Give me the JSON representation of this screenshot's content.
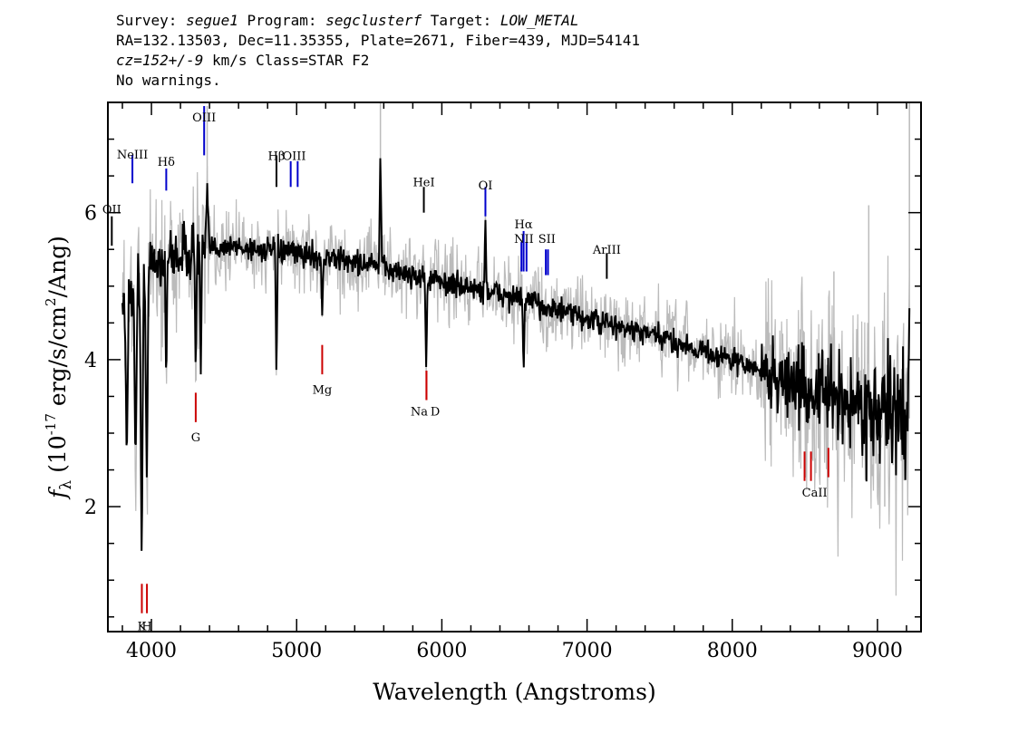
{
  "header": {
    "line1": [
      {
        "text": "Survey: ",
        "italic": false
      },
      {
        "text": "segue1",
        "italic": true
      },
      {
        "text": " Program: ",
        "italic": false
      },
      {
        "text": "segclusterf",
        "italic": true
      },
      {
        "text": " Target: ",
        "italic": false
      },
      {
        "text": "LOW_METAL",
        "italic": true
      }
    ],
    "line2": "RA=132.13503, Dec=11.35355, Plate=2671, Fiber=439, MJD=54141",
    "line3": [
      {
        "text": "cz=152+/-9",
        "italic": true
      },
      {
        "text": " km/s Class=STAR F2",
        "italic": false
      }
    ],
    "line4": "No warnings."
  },
  "chart_data": {
    "type": "line",
    "xlabel": "Wavelength (Angstroms)",
    "ylabel": "f_λ (10^-17 erg/s/cm²/Ang)",
    "ylabel_parts": {
      "f": "f",
      "sub": "λ",
      "pre": " (10",
      "sup1": "-17",
      "mid": " erg/s/cm",
      "sup2": "2",
      "post": "/Ang)"
    },
    "xlim": [
      3700,
      9300
    ],
    "ylim": [
      0.3,
      7.5
    ],
    "x_ticks": [
      4000,
      5000,
      6000,
      7000,
      8000,
      9000
    ],
    "y_ticks": [
      2,
      4,
      6
    ],
    "x_minor_step": 200,
    "y_minor_step": 0.5,
    "series": [
      {
        "role": "flux",
        "color": "#000000",
        "continuum": [
          [
            3800,
            4.8
          ],
          [
            4000,
            5.3
          ],
          [
            4200,
            5.45
          ],
          [
            4500,
            5.55
          ],
          [
            5000,
            5.45
          ],
          [
            5500,
            5.3
          ],
          [
            6000,
            5.05
          ],
          [
            6500,
            4.85
          ],
          [
            7000,
            4.55
          ],
          [
            7500,
            4.3
          ],
          [
            8000,
            4.0
          ],
          [
            8500,
            3.6
          ],
          [
            9000,
            3.3
          ],
          [
            9220,
            3.2
          ]
        ],
        "features": [
          {
            "x": 3830,
            "y": 2.5
          },
          {
            "x": 3890,
            "y": 2.5
          },
          {
            "x": 3933,
            "y": 1.1
          },
          {
            "x": 3968,
            "y": 2.4
          },
          {
            "x": 4102,
            "y": 3.6
          },
          {
            "x": 4305,
            "y": 3.8
          },
          {
            "x": 4340,
            "y": 3.8
          },
          {
            "x": 4384,
            "y": 6.4
          },
          {
            "x": 4861,
            "y": 3.7
          },
          {
            "x": 5176,
            "y": 4.6
          },
          {
            "x": 5577,
            "y": 6.9
          },
          {
            "x": 5892,
            "y": 3.9
          },
          {
            "x": 6300,
            "y": 5.9
          },
          {
            "x": 6563,
            "y": 3.8
          },
          {
            "x": 9220,
            "y": 4.7
          }
        ]
      },
      {
        "role": "error",
        "color": "#bbbbbb",
        "spikes": [
          [
            4384,
            7.45
          ],
          [
            5577,
            7.5
          ],
          [
            9220,
            7.5
          ],
          [
            8940,
            6.1
          ],
          [
            8700,
            5.2
          ],
          [
            9050,
            2.0
          ]
        ]
      }
    ],
    "emission_lines": [
      {
        "label": "OII",
        "x": 3727,
        "y1": 5.55,
        "y2": 5.95,
        "label_y": 6.05,
        "color": "#000000"
      },
      {
        "label": "NeIII",
        "x": 3869,
        "y1": 6.4,
        "y2": 6.78,
        "label_y": 6.8,
        "color": "#0000cc"
      },
      {
        "label": "Hδ",
        "x": 4102,
        "y1": 6.3,
        "y2": 6.6,
        "label_y": 6.7,
        "color": "#0000cc"
      },
      {
        "label": "OIII",
        "x": 4363,
        "y1": 6.78,
        "y2": 7.45,
        "label_y": 7.3,
        "color": "#0000cc"
      },
      {
        "label": "Hβ",
        "x": 4861,
        "y1": 6.35,
        "y2": 6.78,
        "label_y": 6.78,
        "color": "#000000"
      },
      {
        "label": "OIII",
        "x": 4959,
        "y1": 6.35,
        "y2": 6.7,
        "label_y": 6.78,
        "color": "#0000cc"
      },
      {
        "label": "OIII",
        "x": 5007,
        "y1": 6.35,
        "y2": 6.7,
        "label_y": 6.78,
        "color": "#0000cc"
      },
      {
        "label": "HeI",
        "x": 5876,
        "y1": 6.0,
        "y2": 6.35,
        "label_y": 6.42,
        "color": "#000000"
      },
      {
        "label": "OI",
        "x": 6300,
        "y1": 5.95,
        "y2": 6.35,
        "label_y": 6.38,
        "color": "#0000cc"
      },
      {
        "label": "NII",
        "x": 6548,
        "y1": 5.2,
        "y2": 5.6,
        "label_y": 5.65,
        "color": "#0000cc"
      },
      {
        "label": "Hα",
        "x": 6563,
        "y1": 5.2,
        "y2": 5.75,
        "label_y": 5.85,
        "color": "#0000cc"
      },
      {
        "label": "NII",
        "x": 6583,
        "y1": 5.2,
        "y2": 5.6,
        "label_y": 5.65,
        "color": "#0000cc"
      },
      {
        "label": "SII",
        "x": 6716,
        "y1": 5.15,
        "y2": 5.5,
        "label_y": 5.65,
        "color": "#0000cc"
      },
      {
        "label": "SII",
        "x": 6731,
        "y1": 5.15,
        "y2": 5.5,
        "label_y": 5.65,
        "color": "#0000cc"
      },
      {
        "label": "ArIII",
        "x": 7136,
        "y1": 5.1,
        "y2": 5.45,
        "label_y": 5.5,
        "color": "#000000"
      }
    ],
    "absorption_lines": [
      {
        "label": "K",
        "x": 3934,
        "y1": 0.55,
        "y2": 0.95,
        "label_y": 0.38,
        "color": "#cc0000"
      },
      {
        "label": "H",
        "x": 3969,
        "y1": 0.55,
        "y2": 0.95,
        "label_y": 0.38,
        "color": "#cc0000"
      },
      {
        "label": "G",
        "x": 4305,
        "y1": 3.15,
        "y2": 3.55,
        "label_y": 2.95,
        "color": "#cc0000"
      },
      {
        "label": "Mg",
        "x": 5176,
        "y1": 3.8,
        "y2": 4.2,
        "label_y": 3.6,
        "color": "#cc0000"
      },
      {
        "label": "Na",
        "x": 5894,
        "y1": 3.45,
        "y2": 3.85,
        "label_y": 3.3,
        "color": "#cc0000"
      },
      {
        "label": "D",
        "x": 5894,
        "y1": 3.45,
        "y2": 3.85,
        "label_y": 3.3,
        "color": "#cc0000"
      },
      {
        "label": "CaII",
        "x": 8498,
        "y1": 2.35,
        "y2": 2.75,
        "label_y": 2.2,
        "color": "#cc0000"
      },
      {
        "label": "CaII",
        "x": 8542,
        "y1": 2.35,
        "y2": 2.75,
        "label_y": 2.2,
        "color": "#cc0000"
      },
      {
        "label": "CaII",
        "x": 8662,
        "y1": 2.4,
        "y2": 2.8,
        "label_y": 2.2,
        "color": "#cc0000"
      }
    ]
  }
}
